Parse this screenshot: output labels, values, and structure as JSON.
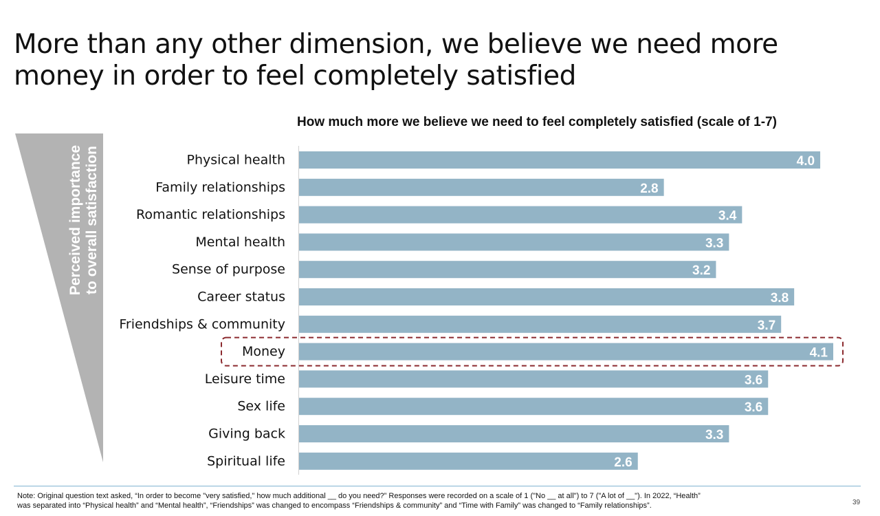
{
  "slide": {
    "title_line1": "More than any other dimension, we believe we need more",
    "title_line2": "money in order to feel completely satisfied",
    "importance_label_line1": "Perceived importance",
    "importance_label_line2": "to overall satisfaction",
    "note_line1": "Note: Original question text asked, “In order to become \"very satisfied,\" how much additional __ do you need?” Responses were recorded on a scale of 1 (\"No __ at all\") to 7 (\"A lot of __\"). In 2022, “Health”",
    "note_line2": "was separated into “Physical health” and “Mental health”, “Friendships” was changed to encompass “Friendships & community” and “Time with Family” was changed to “Family relationships”.",
    "page_number": "39"
  },
  "colors": {
    "bar": "#93b4c6",
    "wedge": "#b3b3b3",
    "highlight_border": "#8b2a2e",
    "footer_rule": "#7fb3d0"
  },
  "chart_data": {
    "type": "bar",
    "orientation": "horizontal",
    "title": "How much more we believe we need to feel completely satisfied (scale of 1-7)",
    "categories": [
      "Physical health",
      "Family relationships",
      "Romantic relationships",
      "Mental health",
      "Sense of purpose",
      "Career status",
      "Friendships & community",
      "Money",
      "Leisure time",
      "Sex life",
      "Giving back",
      "Spiritual life"
    ],
    "values": [
      4.0,
      2.8,
      3.4,
      3.3,
      3.2,
      3.8,
      3.7,
      4.1,
      3.6,
      3.6,
      3.3,
      2.6
    ],
    "value_labels": [
      "4.0",
      "2.8",
      "3.4",
      "3.3",
      "3.2",
      "3.8",
      "3.7",
      "4.1",
      "3.6",
      "3.6",
      "3.3",
      "2.6"
    ],
    "highlighted_category": "Money",
    "xlim": [
      0,
      4.1
    ],
    "grid": false,
    "legend": "none"
  }
}
